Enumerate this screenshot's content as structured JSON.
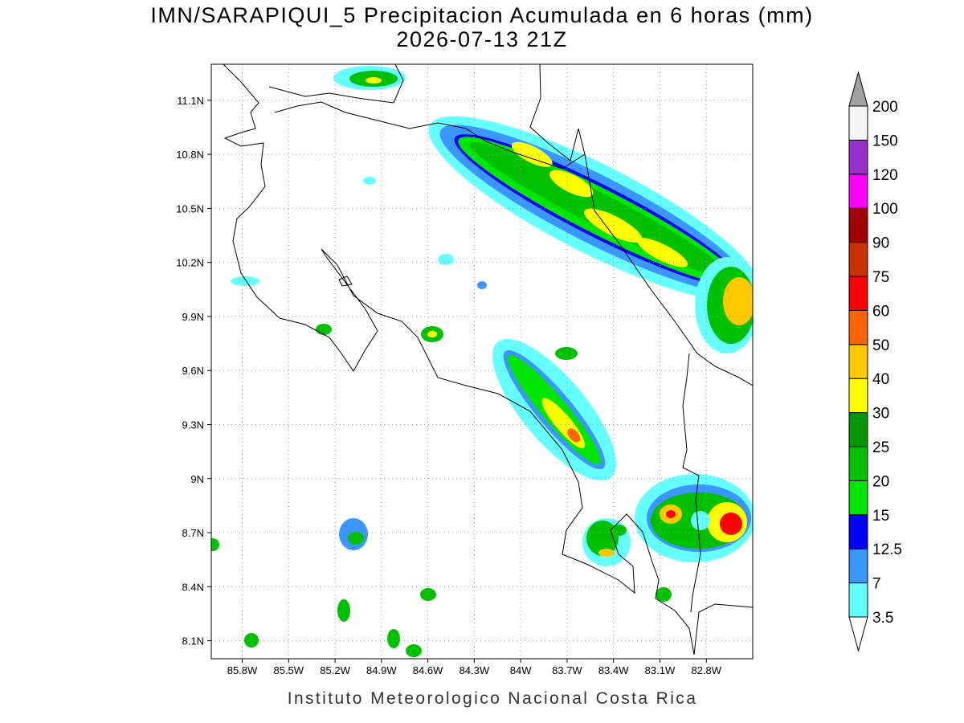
{
  "title": "IMN/SARAPIQUI_5 Precipitacion Acumulada en 6 horas (mm)",
  "subtitle": "2026-07-13 21Z",
  "map": {
    "lonlim": [
      -86.0,
      -82.5
    ],
    "latlim": [
      8.0,
      11.3
    ],
    "grid": true,
    "lon_ticks": [
      {
        "value": -85.8,
        "label": "85.8W"
      },
      {
        "value": -85.5,
        "label": "85.5W"
      },
      {
        "value": -85.2,
        "label": "85.2W"
      },
      {
        "value": -84.9,
        "label": "84.9W"
      },
      {
        "value": -84.6,
        "label": "84.6W"
      },
      {
        "value": -84.3,
        "label": "84.3W"
      },
      {
        "value": -84.0,
        "label": "84W"
      },
      {
        "value": -83.7,
        "label": "83.7W"
      },
      {
        "value": -83.4,
        "label": "83.4W"
      },
      {
        "value": -83.1,
        "label": "83.1W"
      },
      {
        "value": -82.8,
        "label": "82.8W"
      }
    ],
    "lat_ticks": [
      {
        "value": 8.1,
        "label": "8.1N"
      },
      {
        "value": 8.4,
        "label": "8.4N"
      },
      {
        "value": 8.7,
        "label": "8.7N"
      },
      {
        "value": 9.0,
        "label": "9N"
      },
      {
        "value": 9.3,
        "label": "9.3N"
      },
      {
        "value": 9.6,
        "label": "9.6N"
      },
      {
        "value": 9.9,
        "label": "9.9N"
      },
      {
        "value": 10.2,
        "label": "10.2N"
      },
      {
        "value": 10.5,
        "label": "10.5N"
      },
      {
        "value": 10.8,
        "label": "10.8N"
      },
      {
        "value": 11.1,
        "label": "11.1N"
      }
    ]
  },
  "colorbar": {
    "levels": [
      3.5,
      7,
      12.5,
      15,
      20,
      25,
      30,
      40,
      50,
      60,
      75,
      90,
      100,
      120,
      150,
      200
    ],
    "colors": [
      "#66ffff",
      "#3c96ff",
      "#0000ff",
      "#00e600",
      "#00c000",
      "#009600",
      "#ffff00",
      "#ffc800",
      "#ff6400",
      "#ff0000",
      "#c83200",
      "#a00000",
      "#ff00ff",
      "#9932cc",
      "#f5f5f5"
    ],
    "under_color": "#ffffff",
    "over_color": "#a0a0a0"
  },
  "footer": "Instituto Meteorologico Nacional Costa Rica"
}
